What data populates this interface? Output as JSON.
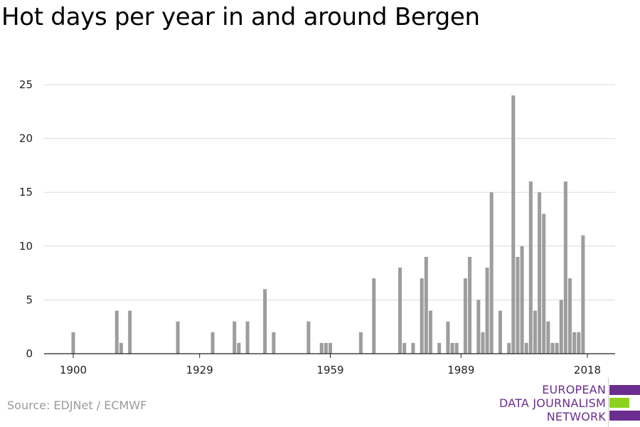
{
  "title": "Hot days per year in and around Bergen",
  "source": "Source: EDJNet / ECMWF",
  "logo": {
    "lines": [
      "EUROPEAN",
      "DATA JOURNALISM",
      "NETWORK"
    ],
    "colors": {
      "purple": "#6b2d8f",
      "green": "#8cd21e",
      "text": "#6b2d8f"
    }
  },
  "colors": {
    "bar": "#9d9d9d",
    "grid": "#d9d9d9",
    "axis": "#222222",
    "tick_text": "#222222"
  },
  "chart_data": {
    "type": "bar",
    "title": "Hot days per year in and around Bergen",
    "xlabel": "",
    "ylabel": "",
    "xlim": [
      1900,
      2018
    ],
    "ylim": [
      0,
      25
    ],
    "yticks": [
      0,
      5,
      10,
      15,
      20,
      25
    ],
    "xticks": [
      1900,
      1929,
      1959,
      1989,
      2018
    ],
    "grid": "horizontal",
    "x": [
      1900,
      1910,
      1911,
      1913,
      1924,
      1932,
      1937,
      1938,
      1940,
      1944,
      1946,
      1954,
      1957,
      1958,
      1959,
      1966,
      1969,
      1975,
      1976,
      1978,
      1980,
      1981,
      1982,
      1984,
      1986,
      1987,
      1988,
      1990,
      1991,
      1993,
      1994,
      1995,
      1996,
      1998,
      2000,
      2001,
      2002,
      2003,
      2004,
      2005,
      2006,
      2007,
      2008,
      2009,
      2010,
      2011,
      2012,
      2013,
      2014,
      2015,
      2016,
      2017
    ],
    "values": [
      2,
      4,
      1,
      4,
      3,
      2,
      3,
      1,
      3,
      6,
      2,
      3,
      1,
      1,
      1,
      2,
      7,
      8,
      1,
      1,
      7,
      9,
      4,
      1,
      3,
      1,
      1,
      7,
      9,
      5,
      2,
      8,
      15,
      4,
      1,
      24,
      9,
      10,
      1,
      16,
      4,
      15,
      13,
      3,
      1,
      1,
      5,
      16,
      7,
      2,
      2,
      11
    ]
  }
}
